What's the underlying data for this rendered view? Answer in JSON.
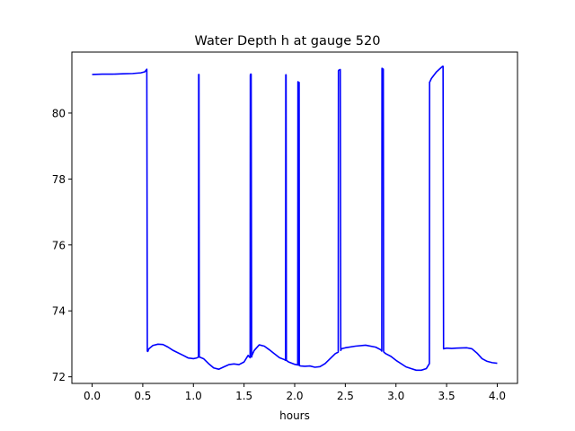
{
  "chart_data": {
    "type": "line",
    "title": "Water Depth h at gauge 520",
    "xlabel": "hours",
    "ylabel": "",
    "xlim": [
      -0.2,
      4.2
    ],
    "ylim": [
      71.8,
      81.85
    ],
    "xticks": [
      0.0,
      0.5,
      1.0,
      1.5,
      2.0,
      2.5,
      3.0,
      3.5,
      4.0
    ],
    "xtick_labels": [
      "0.0",
      "0.5",
      "1.0",
      "1.5",
      "2.0",
      "2.5",
      "3.0",
      "3.5",
      "4.0"
    ],
    "yticks": [
      72,
      74,
      76,
      78,
      80
    ],
    "ytick_labels": [
      "72",
      "74",
      "76",
      "78",
      "80"
    ],
    "grid": false,
    "series": [
      {
        "color": "#0000ff",
        "x": [
          0.0,
          0.1,
          0.2,
          0.3,
          0.4,
          0.48,
          0.52,
          0.54,
          0.545,
          0.55,
          0.56,
          0.6,
          0.65,
          0.7,
          0.75,
          0.8,
          0.9,
          0.95,
          1.0,
          1.03,
          1.05,
          1.052,
          1.055,
          1.058,
          1.06,
          1.1,
          1.15,
          1.2,
          1.25,
          1.3,
          1.35,
          1.4,
          1.45,
          1.5,
          1.54,
          1.56,
          1.562,
          1.565,
          1.57,
          1.575,
          1.578,
          1.6,
          1.65,
          1.7,
          1.75,
          1.8,
          1.85,
          1.9,
          1.91,
          1.912,
          1.915,
          1.918,
          1.94,
          2.0,
          2.03,
          2.032,
          2.034,
          2.036,
          2.04,
          2.042,
          2.044,
          2.046,
          2.06,
          2.1,
          2.15,
          2.2,
          2.25,
          2.3,
          2.35,
          2.4,
          2.43,
          2.432,
          2.435,
          2.45,
          2.455,
          2.458,
          2.46,
          2.5,
          2.6,
          2.7,
          2.8,
          2.85,
          2.86,
          2.862,
          2.865,
          2.875,
          2.878,
          2.88,
          2.9,
          2.95,
          3.0,
          3.1,
          3.15,
          3.2,
          3.25,
          3.3,
          3.33,
          3.332,
          3.335,
          3.35,
          3.4,
          3.45,
          3.46,
          3.465,
          3.47,
          3.5,
          3.55,
          3.6,
          3.7,
          3.75,
          3.8,
          3.85,
          3.9,
          3.95,
          4.0
        ],
        "y": [
          81.17,
          81.18,
          81.18,
          81.19,
          81.2,
          81.22,
          81.25,
          81.33,
          72.78,
          72.77,
          72.85,
          72.95,
          72.99,
          72.98,
          72.9,
          72.8,
          72.65,
          72.57,
          72.55,
          72.57,
          72.6,
          81.17,
          81.17,
          72.6,
          72.6,
          72.55,
          72.4,
          72.27,
          72.23,
          72.3,
          72.37,
          72.39,
          72.37,
          72.45,
          72.65,
          72.58,
          81.15,
          81.18,
          81.18,
          72.6,
          72.65,
          72.8,
          72.97,
          72.93,
          72.82,
          72.7,
          72.58,
          72.52,
          72.5,
          81.16,
          81.16,
          72.5,
          72.45,
          72.38,
          72.36,
          80.95,
          80.95,
          72.36,
          72.36,
          80.93,
          80.93,
          72.34,
          72.33,
          72.32,
          72.33,
          72.29,
          72.31,
          72.4,
          72.55,
          72.7,
          72.75,
          81.28,
          81.3,
          81.32,
          72.8,
          72.82,
          72.85,
          72.88,
          72.93,
          72.96,
          72.9,
          72.82,
          72.78,
          81.36,
          81.35,
          81.33,
          72.78,
          72.75,
          72.7,
          72.62,
          72.5,
          72.3,
          72.25,
          72.2,
          72.2,
          72.25,
          72.4,
          80.94,
          80.95,
          81.05,
          81.25,
          81.39,
          81.42,
          81.42,
          72.85,
          72.87,
          72.86,
          72.87,
          72.88,
          72.85,
          72.72,
          72.55,
          72.47,
          72.43,
          72.41
        ]
      }
    ]
  }
}
